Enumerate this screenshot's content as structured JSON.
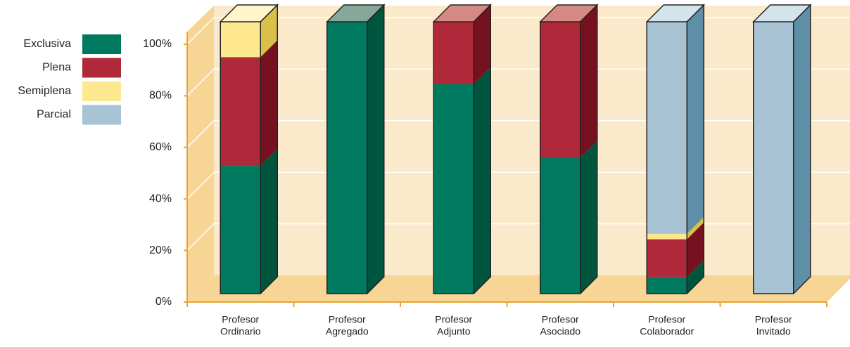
{
  "chart_data": {
    "type": "bar3d_stacked_percent",
    "categories": [
      [
        "Profesor",
        "Ordinario"
      ],
      [
        "Profesor",
        "Agregado"
      ],
      [
        "Profesor",
        "Adjunto"
      ],
      [
        "Profesor",
        "Asociado"
      ],
      [
        "Profesor",
        "Colaborador"
      ],
      [
        "Profesor",
        "Invitado"
      ]
    ],
    "series": [
      {
        "name": "Exclusiva",
        "color": "#007a5e",
        "side": "#00553f",
        "top": "#86a898",
        "values": [
          47,
          100,
          77,
          50,
          6,
          0
        ]
      },
      {
        "name": "Plena",
        "color": "#b0293a",
        "side": "#76121f",
        "top": "#d48a82",
        "values": [
          40,
          0,
          23,
          50,
          14,
          0
        ]
      },
      {
        "name": "Semiplena",
        "color": "#fee88f",
        "side": "#d8c04a",
        "top": "#fff6cc",
        "values": [
          13,
          0,
          0,
          0,
          2,
          0
        ]
      },
      {
        "name": "Parcial",
        "color": "#a8c4d4",
        "side": "#5e8fa8",
        "top": "#d4e4ec",
        "values": [
          0,
          0,
          0,
          0,
          78,
          100
        ]
      }
    ],
    "ylim": [
      0,
      100
    ],
    "yticks": [
      {
        "value": 0,
        "label": "0%"
      },
      {
        "value": 20,
        "label": "20%"
      },
      {
        "value": 40,
        "label": "40%"
      },
      {
        "value": 60,
        "label": "60%"
      },
      {
        "value": 80,
        "label": "80%"
      },
      {
        "value": 100,
        "label": "100%"
      }
    ],
    "grid": true
  }
}
